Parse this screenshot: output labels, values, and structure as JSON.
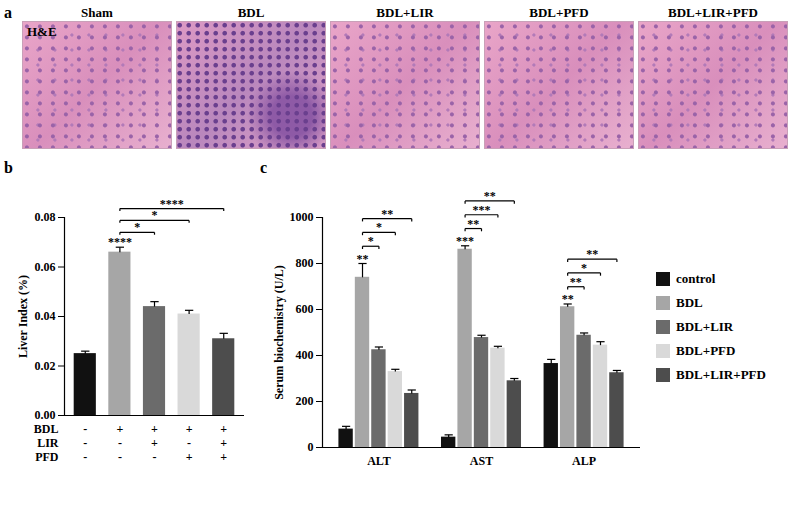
{
  "images": {
    "panel_label": "a",
    "stain": "H&E",
    "titles": [
      "Sham",
      "BDL",
      "BDL+LIR",
      "BDL+PFD",
      "BDL+LIR+PFD"
    ]
  },
  "chart_data": [
    {
      "panel_label": "b",
      "type": "bar",
      "categories": [
        null,
        null,
        null,
        null,
        null
      ],
      "values": [
        0.025,
        0.066,
        0.044,
        0.041,
        0.031
      ],
      "errors": [
        0.001,
        0.002,
        0.002,
        0.0015,
        0.0022
      ],
      "colors": [
        "#111111",
        "#a6a6a6",
        "#6b6b6b",
        "#d9d9d9",
        "#4d4d4d"
      ],
      "y_label": "Liver Index (%)",
      "ylim": [
        0,
        0.08
      ],
      "yticks": [
        {
          "value": 0,
          "label": "0.00"
        },
        0.02,
        0.04,
        0.06,
        0.08
      ],
      "treatment_table": {
        "rows": [
          "BDL",
          "LIR",
          "PFD"
        ],
        "cells": [
          [
            "-",
            "+",
            "+",
            "+",
            "+"
          ],
          [
            "-",
            "-",
            "+",
            "-",
            "+"
          ],
          [
            "-",
            "-",
            "-",
            "+",
            "+"
          ]
        ]
      },
      "significance": {
        "on_bars": [
          null,
          "****",
          null,
          null,
          null
        ],
        "brackets": [
          {
            "from": 1,
            "to": 2,
            "label": "*"
          },
          {
            "from": 1,
            "to": 3,
            "label": "*"
          },
          {
            "from": 1,
            "to": 4,
            "label": "****"
          }
        ]
      }
    },
    {
      "panel_label": "c",
      "type": "bar",
      "categories": [
        "ALT",
        "AST",
        "ALP"
      ],
      "series": [
        {
          "name": "control",
          "color": "#111111",
          "values": [
            80,
            45,
            365
          ],
          "errors": [
            12,
            10,
            18
          ]
        },
        {
          "name": "BDL",
          "color": "#a6a6a6",
          "values": [
            740,
            862,
            612
          ],
          "errors": [
            60,
            15,
            12
          ]
        },
        {
          "name": "BDL+LIR",
          "color": "#6b6b6b",
          "values": [
            425,
            478,
            488
          ],
          "errors": [
            12,
            10,
            10
          ]
        },
        {
          "name": "BDL+PFD",
          "color": "#d9d9d9",
          "values": [
            330,
            432,
            445
          ],
          "errors": [
            10,
            8,
            15
          ]
        },
        {
          "name": "BDL+LIR+PFD",
          "color": "#4d4d4d",
          "values": [
            235,
            290,
            325
          ],
          "errors": [
            15,
            10,
            10
          ]
        }
      ],
      "y_label": "Serum biochemistry (U/L)",
      "ylim": [
        0,
        1000
      ],
      "yticks": [
        0,
        200,
        400,
        600,
        800,
        1000
      ],
      "legend": "right",
      "significance": {
        "on_bars": [
          [
            null,
            "**",
            null,
            null,
            null
          ],
          [
            null,
            "***",
            null,
            null,
            null
          ],
          [
            null,
            "**",
            null,
            null,
            null
          ]
        ],
        "brackets": [
          {
            "category": 0,
            "from": 1,
            "to": 2,
            "label": "*"
          },
          {
            "category": 0,
            "from": 1,
            "to": 3,
            "label": "*"
          },
          {
            "category": 0,
            "from": 1,
            "to": 4,
            "label": "**"
          },
          {
            "category": 1,
            "from": 1,
            "to": 2,
            "label": "**"
          },
          {
            "category": 1,
            "from": 1,
            "to": 3,
            "label": "***"
          },
          {
            "category": 1,
            "from": 1,
            "to": 4,
            "label": "**"
          },
          {
            "category": 2,
            "from": 1,
            "to": 2,
            "label": "**"
          },
          {
            "category": 2,
            "from": 1,
            "to": 3,
            "label": "*"
          },
          {
            "category": 2,
            "from": 1,
            "to": 4,
            "label": "**"
          }
        ]
      }
    }
  ]
}
